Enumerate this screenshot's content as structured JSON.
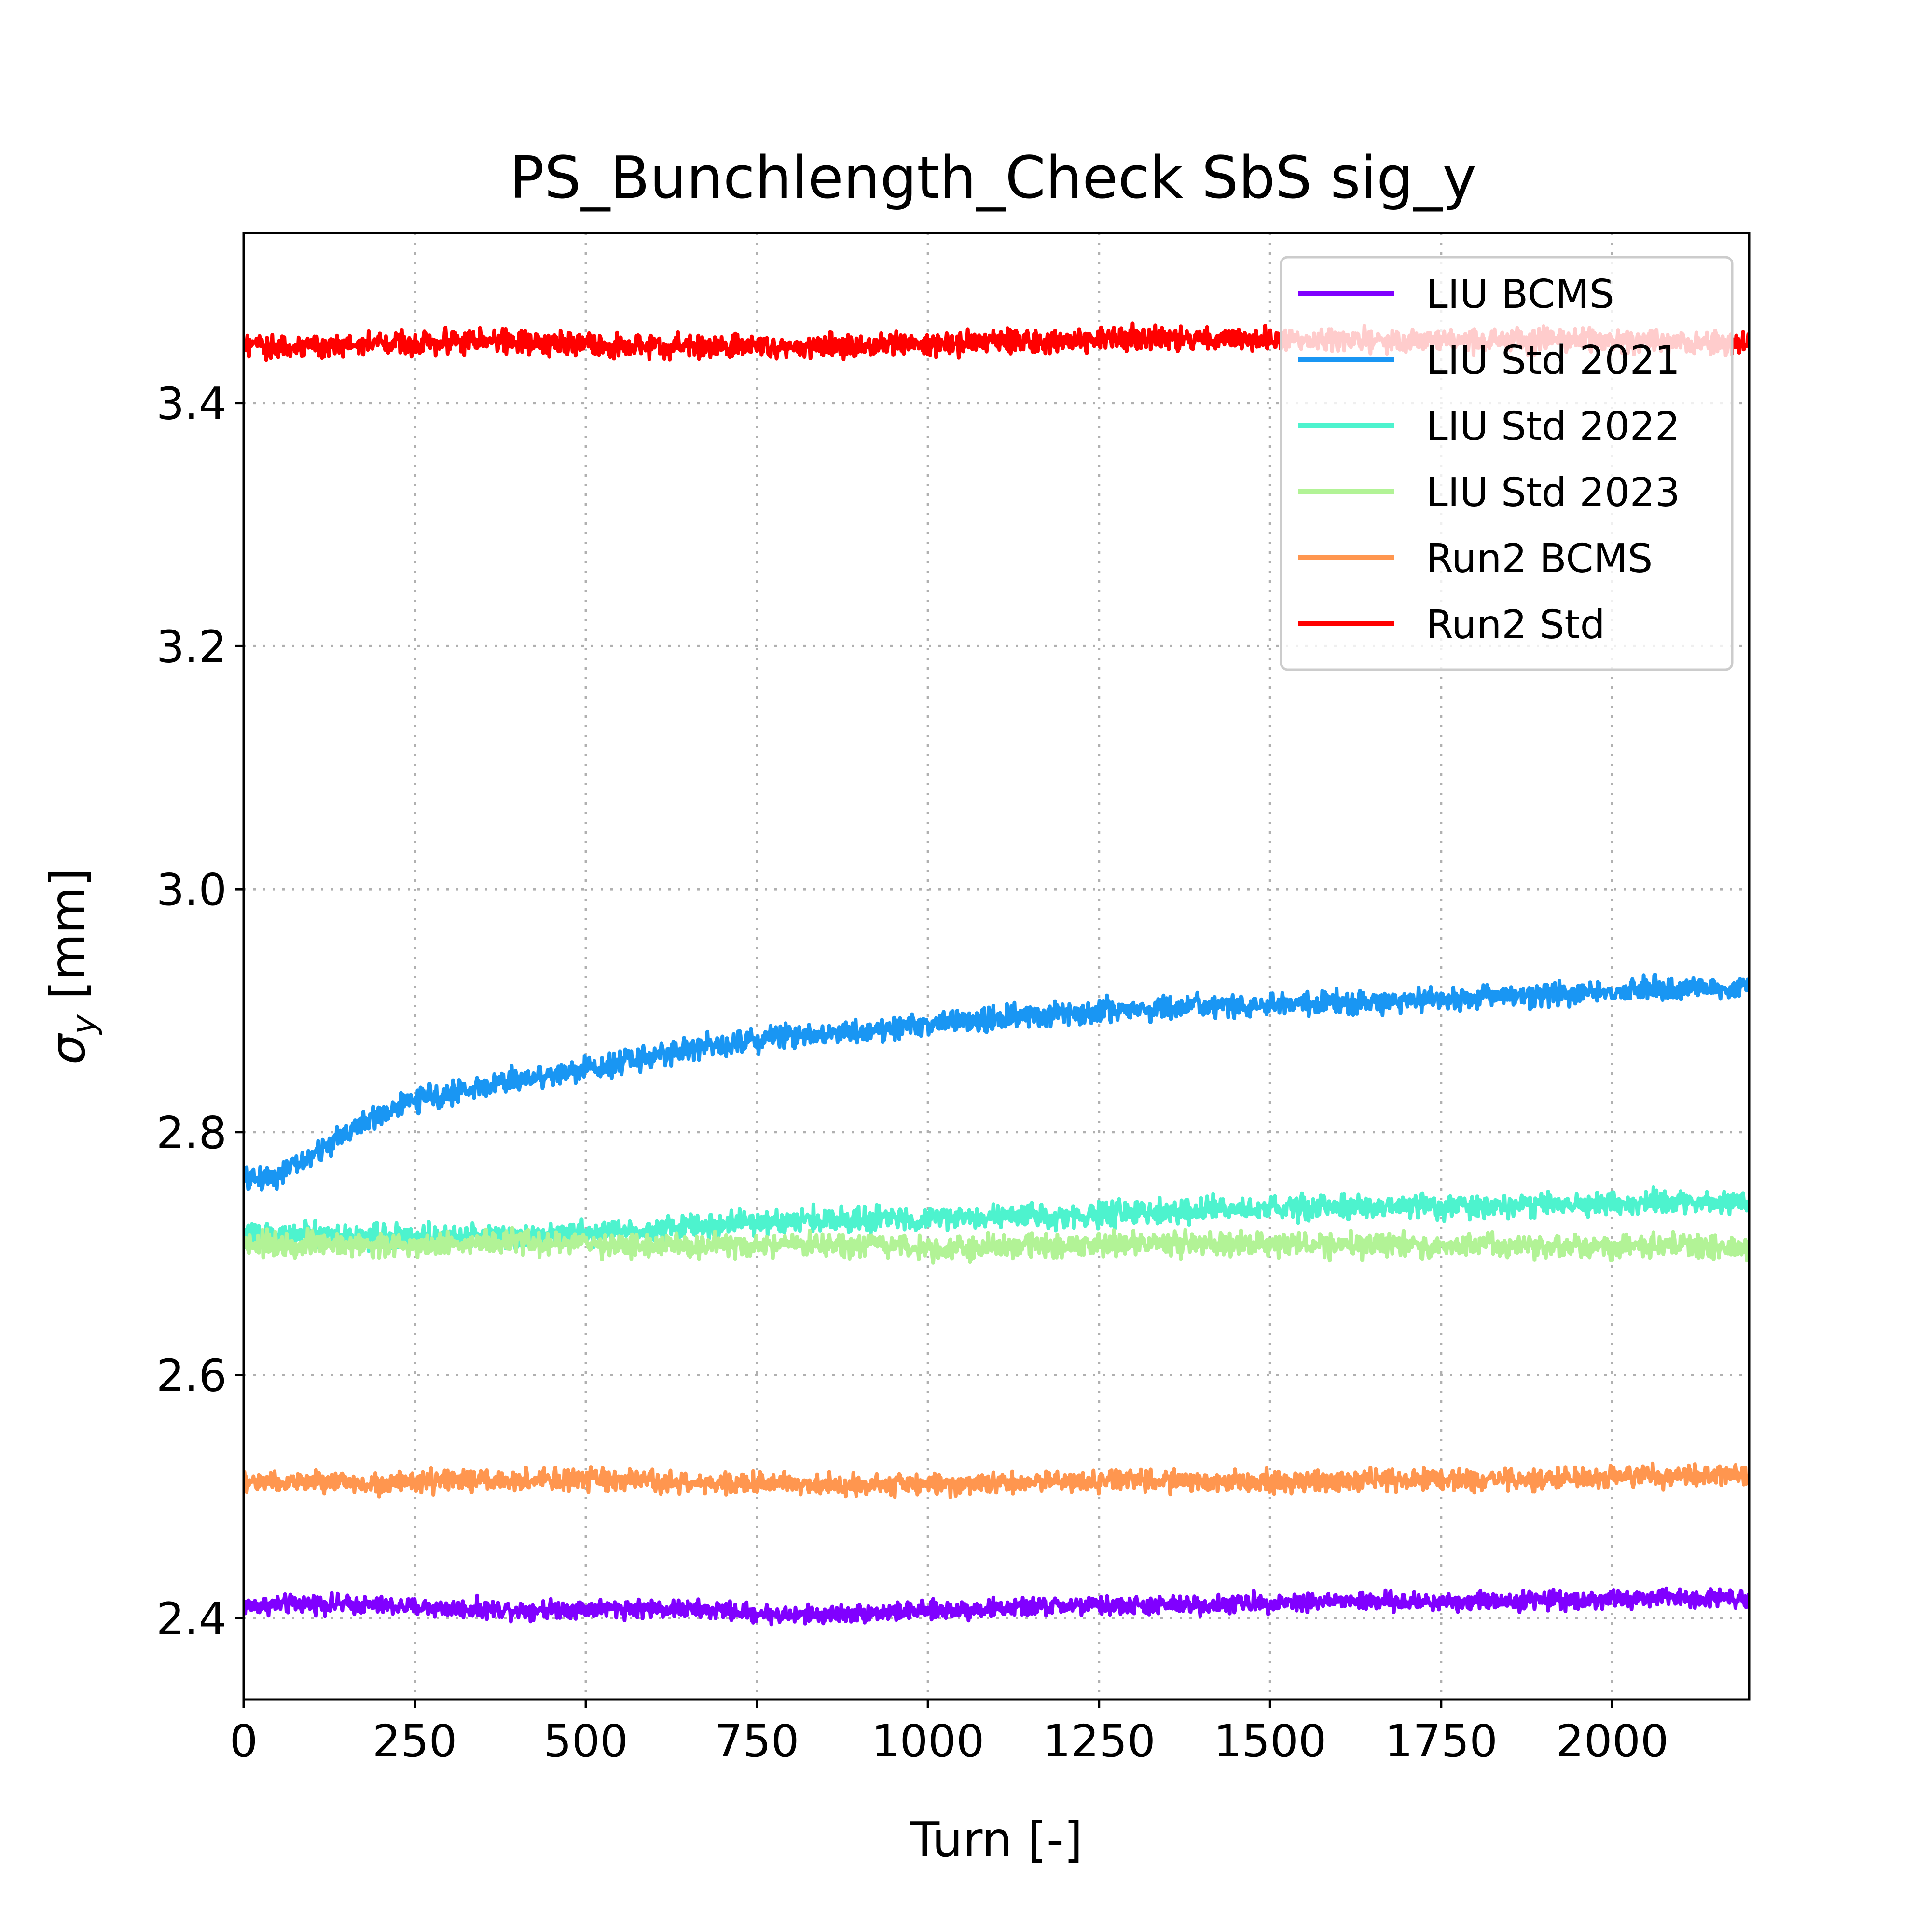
{
  "chart_data": {
    "type": "line",
    "title": "PS_Bunchlength_Check SbS sig_y",
    "xlabel": "Turn [-]",
    "ylabel_symbol": "σ",
    "ylabel_subscript": "y",
    "ylabel_unit": " [mm]",
    "xlim": [
      0,
      2200
    ],
    "ylim": [
      2.333,
      3.54
    ],
    "xticks": [
      0,
      250,
      500,
      750,
      1000,
      1250,
      1500,
      1750,
      2000
    ],
    "xtick_labels": [
      "0",
      "250",
      "500",
      "750",
      "1000",
      "1250",
      "1500",
      "1750",
      "2000"
    ],
    "yticks": [
      2.4,
      2.6,
      2.8,
      3.0,
      3.2,
      3.4
    ],
    "ytick_labels": [
      "2.4",
      "2.6",
      "2.8",
      "3.0",
      "3.2",
      "3.4"
    ],
    "grid": true,
    "legend_position": "top-right",
    "noise_note_excluded": true,
    "series": [
      {
        "name": "LIU BCMS",
        "color": "#8000ff",
        "x": [
          0,
          100,
          200,
          300,
          400,
          500,
          600,
          700,
          800,
          900,
          1000,
          1100,
          1200,
          1300,
          1400,
          1500,
          1600,
          1700,
          1800,
          1900,
          2000,
          2100,
          2200
        ],
        "y": [
          2.41,
          2.412,
          2.41,
          2.408,
          2.407,
          2.408,
          2.408,
          2.406,
          2.402,
          2.404,
          2.406,
          2.408,
          2.41,
          2.41,
          2.411,
          2.413,
          2.414,
          2.413,
          2.414,
          2.415,
          2.415,
          2.417,
          2.417
        ],
        "noise": 0.007
      },
      {
        "name": "LIU Std 2021",
        "color": "#1996f3",
        "x": [
          0,
          50,
          100,
          150,
          200,
          250,
          300,
          400,
          500,
          600,
          700,
          800,
          900,
          1000,
          1100,
          1200,
          1300,
          1400,
          1500,
          1600,
          1700,
          1800,
          1900,
          2000,
          2100,
          2200
        ],
        "y": [
          2.76,
          2.765,
          2.78,
          2.8,
          2.815,
          2.826,
          2.832,
          2.843,
          2.852,
          2.863,
          2.873,
          2.88,
          2.883,
          2.889,
          2.893,
          2.898,
          2.901,
          2.903,
          2.904,
          2.906,
          2.908,
          2.911,
          2.914,
          2.916,
          2.918,
          2.92
        ],
        "noise": 0.009
      },
      {
        "name": "LIU Std 2022",
        "color": "#4df3ce",
        "x": [
          0,
          100,
          200,
          300,
          400,
          500,
          600,
          700,
          800,
          900,
          1000,
          1100,
          1200,
          1300,
          1400,
          1500,
          1600,
          1700,
          1800,
          1900,
          2000,
          2100,
          2200
        ],
        "y": [
          2.715,
          2.715,
          2.714,
          2.714,
          2.715,
          2.717,
          2.72,
          2.724,
          2.727,
          2.728,
          2.729,
          2.73,
          2.731,
          2.733,
          2.735,
          2.737,
          2.738,
          2.739,
          2.739,
          2.74,
          2.741,
          2.742,
          2.743
        ],
        "noise": 0.009
      },
      {
        "name": "LIU Std 2023",
        "color": "#b2f396",
        "x": [
          0,
          100,
          200,
          300,
          400,
          500,
          600,
          700,
          800,
          900,
          1000,
          1100,
          1200,
          1300,
          1400,
          1500,
          1600,
          1700,
          1800,
          1900,
          2000,
          2100,
          2200
        ],
        "y": [
          2.708,
          2.708,
          2.707,
          2.708,
          2.709,
          2.708,
          2.706,
          2.706,
          2.706,
          2.706,
          2.705,
          2.705,
          2.707,
          2.708,
          2.708,
          2.708,
          2.707,
          2.707,
          2.706,
          2.706,
          2.706,
          2.706,
          2.706
        ],
        "noise": 0.009
      },
      {
        "name": "Run2 BCMS",
        "color": "#ff964f",
        "x": [
          0,
          100,
          200,
          300,
          400,
          500,
          600,
          700,
          800,
          900,
          1000,
          1100,
          1200,
          1300,
          1400,
          1500,
          1600,
          1700,
          1800,
          1900,
          2000,
          2100,
          2200
        ],
        "y": [
          2.512,
          2.512,
          2.511,
          2.513,
          2.513,
          2.514,
          2.512,
          2.51,
          2.511,
          2.51,
          2.51,
          2.511,
          2.512,
          2.514,
          2.512,
          2.512,
          2.513,
          2.514,
          2.514,
          2.515,
          2.516,
          2.517,
          2.518
        ],
        "noise": 0.008
      },
      {
        "name": "Run2 Std",
        "color": "#ff0000",
        "x": [
          0,
          100,
          200,
          300,
          400,
          500,
          600,
          700,
          800,
          900,
          1000,
          1100,
          1200,
          1300,
          1400,
          1500,
          1600,
          1700,
          1800,
          1900,
          2000,
          2100,
          2200
        ],
        "y": [
          3.446,
          3.447,
          3.449,
          3.451,
          3.451,
          3.447,
          3.446,
          3.447,
          3.447,
          3.448,
          3.449,
          3.45,
          3.451,
          3.453,
          3.453,
          3.452,
          3.452,
          3.452,
          3.452,
          3.452,
          3.451,
          3.45,
          3.448
        ],
        "noise": 0.009
      }
    ]
  }
}
